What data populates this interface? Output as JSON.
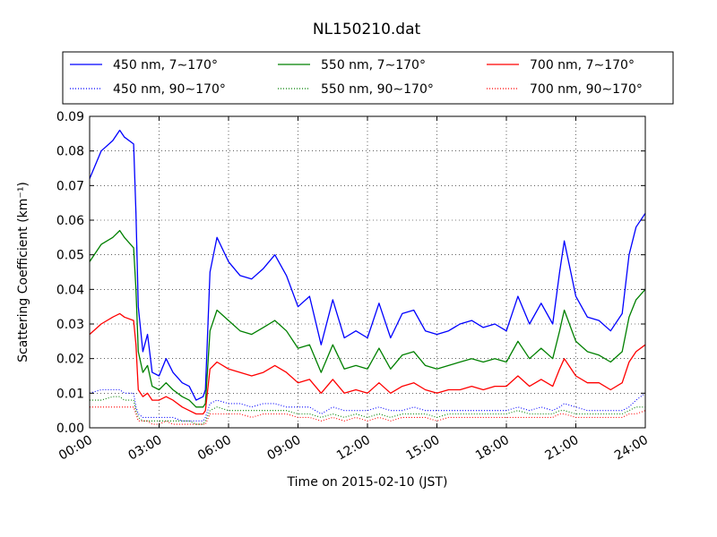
{
  "chart_data": {
    "type": "line",
    "title": "NL150210.dat",
    "xlabel": "Time on 2015-02-10 (JST)",
    "ylabel": "Scattering Coefficient (km⁻¹)",
    "xlim": [
      0,
      24
    ],
    "ylim": [
      0,
      0.09
    ],
    "x_ticks": [
      0,
      3,
      6,
      9,
      12,
      15,
      18,
      21,
      24
    ],
    "x_tick_labels": [
      "00:00",
      "03:00",
      "06:00",
      "09:00",
      "12:00",
      "15:00",
      "18:00",
      "21:00",
      "24:00"
    ],
    "y_ticks": [
      0,
      0.01,
      0.02,
      0.03,
      0.04,
      0.05,
      0.06,
      0.07,
      0.08,
      0.09
    ],
    "y_tick_labels": [
      "0.00",
      "0.01",
      "0.02",
      "0.03",
      "0.04",
      "0.05",
      "0.06",
      "0.07",
      "0.08",
      "0.09"
    ],
    "grid": true,
    "legend_position": "top",
    "x": [
      0.0,
      0.5,
      1.0,
      1.3,
      1.5,
      1.9,
      2.0,
      2.1,
      2.3,
      2.5,
      2.7,
      3.0,
      3.3,
      3.6,
      4.0,
      4.3,
      4.6,
      4.9,
      5.0,
      5.2,
      5.5,
      6.0,
      6.5,
      7.0,
      7.5,
      8.0,
      8.5,
      9.0,
      9.5,
      10.0,
      10.5,
      11.0,
      11.5,
      12.0,
      12.5,
      13.0,
      13.5,
      14.0,
      14.5,
      15.0,
      15.5,
      16.0,
      16.5,
      17.0,
      17.5,
      18.0,
      18.5,
      19.0,
      19.5,
      20.0,
      20.3,
      20.5,
      21.0,
      21.5,
      22.0,
      22.5,
      23.0,
      23.3,
      23.6,
      24.0
    ],
    "series": [
      {
        "name": "450 nm, 7∼170°",
        "color": "#0000ff",
        "style": "solid",
        "values": [
          0.072,
          0.08,
          0.083,
          0.086,
          0.084,
          0.082,
          0.062,
          0.035,
          0.022,
          0.027,
          0.016,
          0.015,
          0.02,
          0.016,
          0.013,
          0.012,
          0.008,
          0.009,
          0.011,
          0.045,
          0.055,
          0.048,
          0.044,
          0.043,
          0.046,
          0.05,
          0.044,
          0.035,
          0.038,
          0.024,
          0.037,
          0.026,
          0.028,
          0.026,
          0.036,
          0.026,
          0.033,
          0.034,
          0.028,
          0.027,
          0.028,
          0.03,
          0.031,
          0.029,
          0.03,
          0.028,
          0.038,
          0.03,
          0.036,
          0.03,
          0.045,
          0.054,
          0.038,
          0.032,
          0.031,
          0.028,
          0.033,
          0.05,
          0.058,
          0.062
        ]
      },
      {
        "name": "450 nm, 90∼170°",
        "color": "#0000ff",
        "style": "dotted",
        "values": [
          0.01,
          0.011,
          0.011,
          0.011,
          0.01,
          0.01,
          0.006,
          0.004,
          0.003,
          0.003,
          0.003,
          0.003,
          0.003,
          0.003,
          0.002,
          0.002,
          0.002,
          0.002,
          0.003,
          0.007,
          0.008,
          0.007,
          0.007,
          0.006,
          0.007,
          0.007,
          0.006,
          0.006,
          0.006,
          0.004,
          0.006,
          0.005,
          0.005,
          0.005,
          0.006,
          0.005,
          0.005,
          0.006,
          0.005,
          0.005,
          0.005,
          0.005,
          0.005,
          0.005,
          0.005,
          0.005,
          0.006,
          0.005,
          0.006,
          0.005,
          0.006,
          0.007,
          0.006,
          0.005,
          0.005,
          0.005,
          0.005,
          0.006,
          0.008,
          0.01
        ]
      },
      {
        "name": "550 nm, 7∼170°",
        "color": "#008000",
        "style": "solid",
        "values": [
          0.048,
          0.053,
          0.055,
          0.057,
          0.055,
          0.052,
          0.04,
          0.022,
          0.016,
          0.018,
          0.012,
          0.011,
          0.013,
          0.011,
          0.009,
          0.008,
          0.006,
          0.006,
          0.007,
          0.028,
          0.034,
          0.031,
          0.028,
          0.027,
          0.029,
          0.031,
          0.028,
          0.023,
          0.024,
          0.016,
          0.024,
          0.017,
          0.018,
          0.017,
          0.023,
          0.017,
          0.021,
          0.022,
          0.018,
          0.017,
          0.018,
          0.019,
          0.02,
          0.019,
          0.02,
          0.019,
          0.025,
          0.02,
          0.023,
          0.02,
          0.028,
          0.034,
          0.025,
          0.022,
          0.021,
          0.019,
          0.022,
          0.032,
          0.037,
          0.04
        ]
      },
      {
        "name": "550 nm, 90∼170°",
        "color": "#008000",
        "style": "dotted",
        "values": [
          0.008,
          0.008,
          0.009,
          0.009,
          0.008,
          0.008,
          0.005,
          0.003,
          0.002,
          0.002,
          0.002,
          0.002,
          0.002,
          0.002,
          0.002,
          0.002,
          0.001,
          0.001,
          0.002,
          0.005,
          0.006,
          0.005,
          0.005,
          0.005,
          0.005,
          0.005,
          0.005,
          0.004,
          0.004,
          0.003,
          0.004,
          0.003,
          0.004,
          0.003,
          0.004,
          0.003,
          0.004,
          0.004,
          0.004,
          0.003,
          0.004,
          0.004,
          0.004,
          0.004,
          0.004,
          0.004,
          0.005,
          0.004,
          0.004,
          0.004,
          0.005,
          0.005,
          0.004,
          0.004,
          0.004,
          0.004,
          0.004,
          0.005,
          0.006,
          0.006
        ]
      },
      {
        "name": "700 nm, 7∼170°",
        "color": "#ff0000",
        "style": "solid",
        "values": [
          0.027,
          0.03,
          0.032,
          0.033,
          0.032,
          0.031,
          0.024,
          0.011,
          0.009,
          0.01,
          0.008,
          0.008,
          0.009,
          0.008,
          0.006,
          0.005,
          0.004,
          0.004,
          0.005,
          0.017,
          0.019,
          0.017,
          0.016,
          0.015,
          0.016,
          0.018,
          0.016,
          0.013,
          0.014,
          0.01,
          0.014,
          0.01,
          0.011,
          0.01,
          0.013,
          0.01,
          0.012,
          0.013,
          0.011,
          0.01,
          0.011,
          0.011,
          0.012,
          0.011,
          0.012,
          0.012,
          0.015,
          0.012,
          0.014,
          0.012,
          0.017,
          0.02,
          0.015,
          0.013,
          0.013,
          0.011,
          0.013,
          0.019,
          0.022,
          0.024
        ]
      },
      {
        "name": "700 nm, 90∼170°",
        "color": "#ff0000",
        "style": "dotted",
        "values": [
          0.006,
          0.006,
          0.006,
          0.006,
          0.006,
          0.006,
          0.004,
          0.002,
          0.002,
          0.002,
          0.001,
          0.001,
          0.002,
          0.001,
          0.001,
          0.001,
          0.001,
          0.001,
          0.001,
          0.004,
          0.004,
          0.004,
          0.004,
          0.003,
          0.004,
          0.004,
          0.004,
          0.003,
          0.003,
          0.002,
          0.003,
          0.002,
          0.003,
          0.002,
          0.003,
          0.002,
          0.003,
          0.003,
          0.003,
          0.002,
          0.003,
          0.003,
          0.003,
          0.003,
          0.003,
          0.003,
          0.003,
          0.003,
          0.003,
          0.003,
          0.004,
          0.004,
          0.003,
          0.003,
          0.003,
          0.003,
          0.003,
          0.004,
          0.004,
          0.005
        ]
      }
    ]
  }
}
